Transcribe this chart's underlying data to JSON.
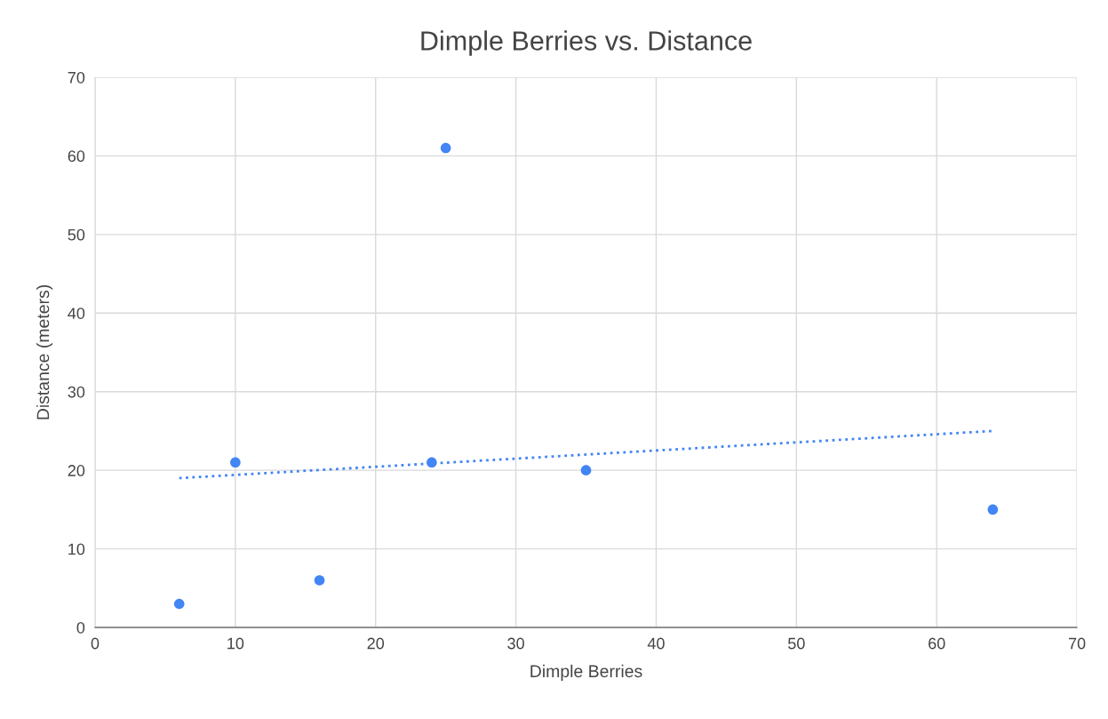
{
  "chart_data": {
    "type": "scatter",
    "title": "Dimple Berries vs. Distance",
    "xlabel": "Dimple Berries",
    "ylabel": "Distance (meters)",
    "series": [
      {
        "color": "#4285f4",
        "marker": "circle",
        "x": [
          6,
          10,
          16,
          24,
          25,
          35,
          64
        ],
        "values": [
          3,
          21,
          6,
          21,
          61,
          20,
          15
        ]
      },
      {
        "type": "line",
        "color": "#4285f4",
        "marker": "none",
        "line_style": "dotted",
        "x": [
          6,
          64
        ],
        "values": [
          19.0,
          25.0
        ]
      }
    ],
    "xlim": [
      0,
      70
    ],
    "xticks": [
      0,
      10,
      20,
      30,
      40,
      50,
      60,
      70
    ],
    "ylim": [
      0,
      70
    ],
    "yticks": [
      0,
      10,
      20,
      30,
      40,
      50,
      60,
      70
    ],
    "grid": true,
    "legend": false
  }
}
